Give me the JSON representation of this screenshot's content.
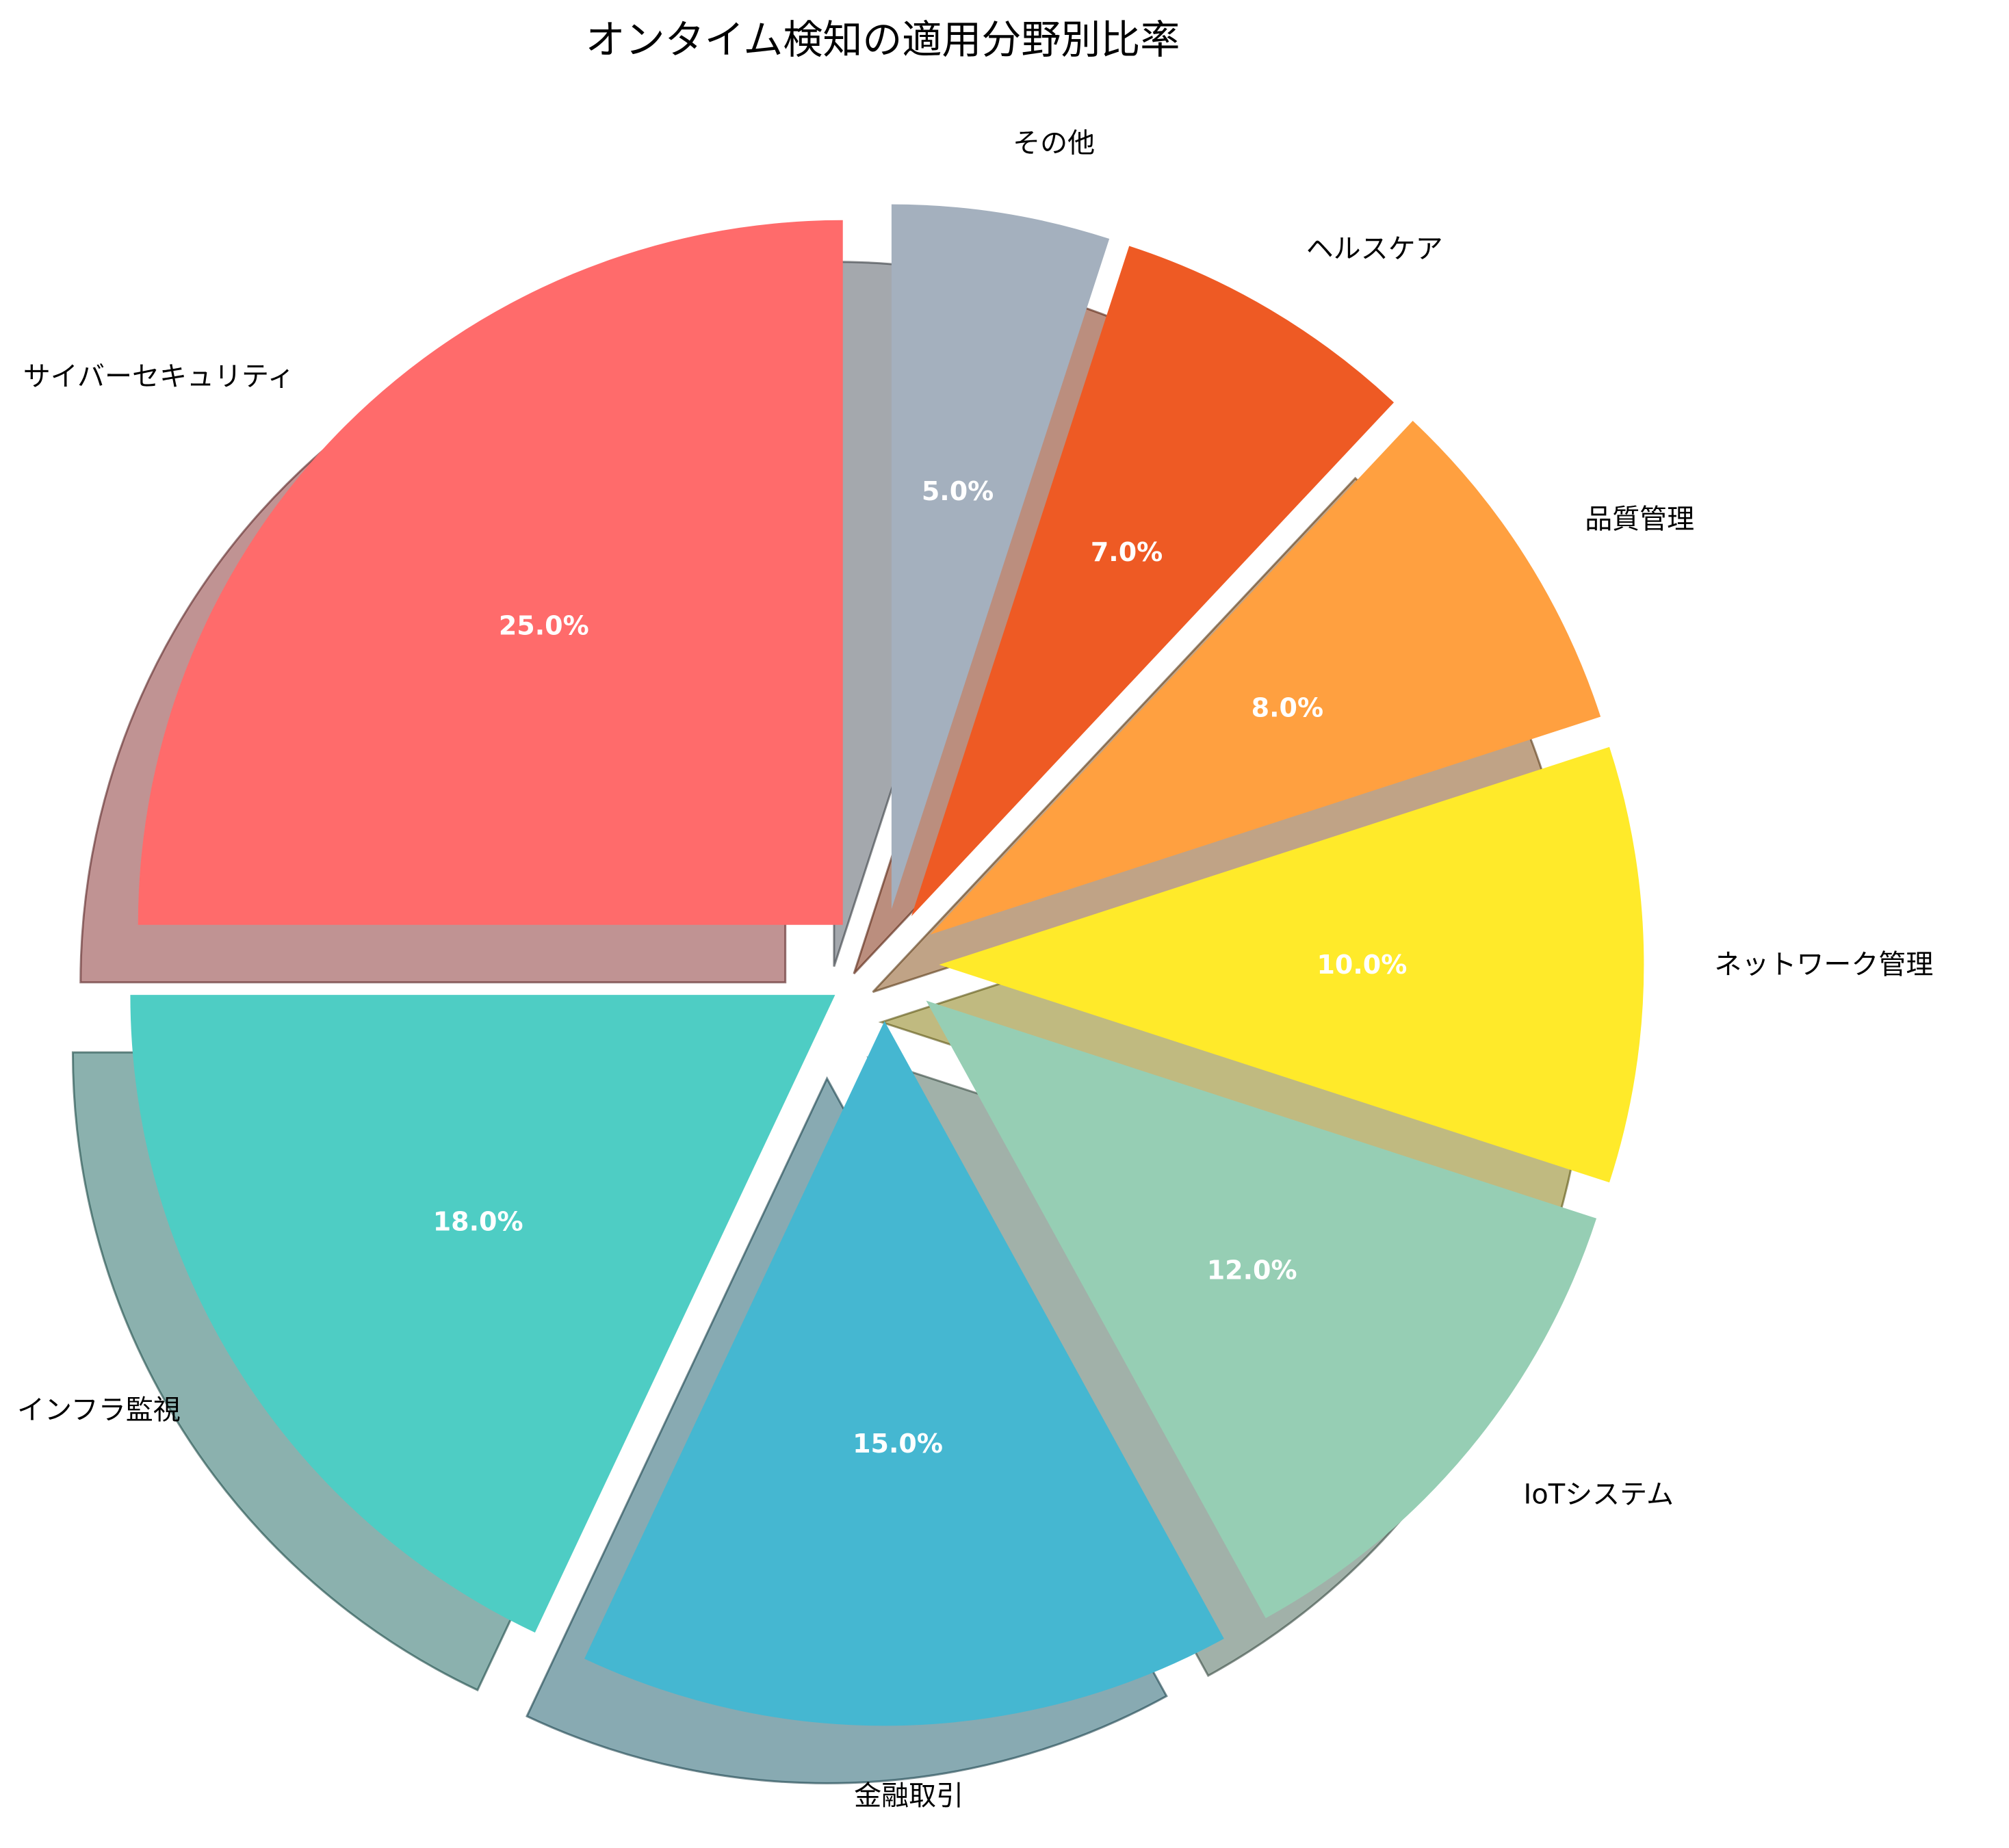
{
  "chart_data": {
    "type": "pie",
    "title": "オンタイム検知の適用分野別比率",
    "categories": [
      "サイバーセキュリティ",
      "インフラ監視",
      "金融取引",
      "IoTシステム",
      "ネットワーク管理",
      "品質管理",
      "ヘルスケア",
      "その他"
    ],
    "values": [
      25,
      18,
      15,
      12,
      10,
      8,
      7,
      5
    ],
    "value_labels": [
      "25.0%",
      "18.0%",
      "15.0%",
      "12.0%",
      "10.0%",
      "8.0%",
      "7.0%",
      "5.0%"
    ],
    "colors": [
      "#FF6B6B",
      "#4ECDC4",
      "#45B7D1",
      "#96CEB4",
      "#FFEA2A",
      "#FFA040",
      "#EE5A24",
      "#A4B0BE"
    ],
    "start_angle_deg": 90,
    "direction": "counterclockwise",
    "shadow": true,
    "exploded": true,
    "legend": "none"
  }
}
